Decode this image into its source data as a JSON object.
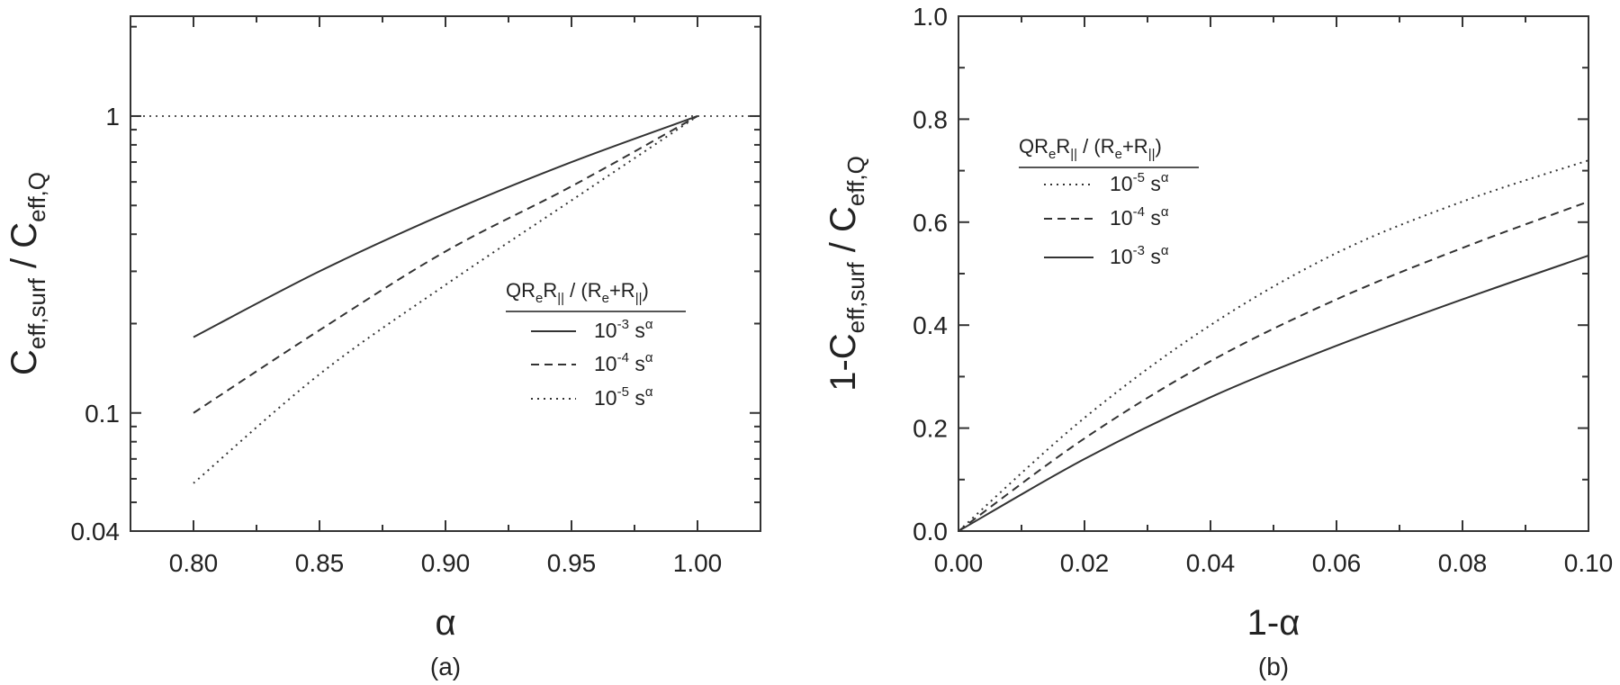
{
  "chart_data": [
    {
      "panel_label": "(a)",
      "type": "line",
      "xlabel": "α",
      "ylabel": {
        "base": "C",
        "sub1": "eff,surf",
        "mid": " / C",
        "sub2": "eff,Q"
      },
      "xlim": [
        0.775,
        1.025
      ],
      "ylim": [
        0.04,
        2.17
      ],
      "yscale": "log",
      "xticks": [
        "0.80",
        "0.85",
        "0.90",
        "0.95",
        "1.00"
      ],
      "xtick_values": [
        0.8,
        0.85,
        0.9,
        0.95,
        1.0
      ],
      "yticks": [
        "0.04",
        "0.1",
        "1"
      ],
      "ytick_values": [
        0.04,
        0.1,
        1
      ],
      "reference_line": {
        "y": 1,
        "style": "dotted"
      },
      "legend": {
        "title": {
          "a": "QR",
          "b": "e",
          "c": "R",
          "d": "||",
          "e": " / (R",
          "f": "e",
          "g": "+R",
          "h": "||",
          "i": ")"
        },
        "position": "center-right"
      },
      "series": [
        {
          "name": {
            "base": "10",
            "exp": "-3",
            "unit": " s",
            "uexp": "α"
          },
          "style": "solid",
          "x": [
            0.8,
            0.85,
            0.9,
            0.95,
            1.0
          ],
          "y": [
            0.18,
            0.3,
            0.47,
            0.7,
            1.0
          ]
        },
        {
          "name": {
            "base": "10",
            "exp": "-4",
            "unit": " s",
            "uexp": "α"
          },
          "style": "dashed",
          "x": [
            0.8,
            0.85,
            0.9,
            0.95,
            1.0
          ],
          "y": [
            0.1,
            0.19,
            0.35,
            0.58,
            1.0
          ]
        },
        {
          "name": {
            "base": "10",
            "exp": "-5",
            "unit": " s",
            "uexp": "α"
          },
          "style": "dotted",
          "x": [
            0.8,
            0.85,
            0.9,
            0.95,
            1.0
          ],
          "y": [
            0.058,
            0.135,
            0.27,
            0.52,
            1.0
          ]
        }
      ]
    },
    {
      "panel_label": "(b)",
      "type": "line",
      "xlabel": "1-α",
      "ylabel": {
        "base": "1-C",
        "sub1": "eff,surf",
        "mid": " / C",
        "sub2": "eff,Q"
      },
      "xlim": [
        0,
        0.1
      ],
      "ylim": [
        0,
        1.0
      ],
      "yscale": "linear",
      "xticks": [
        "0.00",
        "0.02",
        "0.04",
        "0.06",
        "0.08",
        "0.10"
      ],
      "xtick_values": [
        0,
        0.02,
        0.04,
        0.06,
        0.08,
        0.1
      ],
      "yticks": [
        "0.0",
        "0.2",
        "0.4",
        "0.6",
        "0.8",
        "1.0"
      ],
      "ytick_values": [
        0,
        0.2,
        0.4,
        0.6,
        0.8,
        1.0
      ],
      "legend": {
        "title": {
          "a": "QR",
          "b": "e",
          "c": "R",
          "d": "||",
          "e": " / (R",
          "f": "e",
          "g": "+R",
          "h": "||",
          "i": ")"
        },
        "position": "upper-left"
      },
      "series": [
        {
          "name": {
            "base": "10",
            "exp": "-5",
            "unit": " s",
            "uexp": "α"
          },
          "style": "dotted",
          "x": [
            0,
            0.02,
            0.04,
            0.06,
            0.08,
            0.1
          ],
          "y": [
            0,
            0.22,
            0.4,
            0.54,
            0.64,
            0.72
          ]
        },
        {
          "name": {
            "base": "10",
            "exp": "-4",
            "unit": " s",
            "uexp": "α"
          },
          "style": "dashed",
          "x": [
            0,
            0.02,
            0.04,
            0.06,
            0.08,
            0.1
          ],
          "y": [
            0,
            0.18,
            0.33,
            0.45,
            0.55,
            0.64
          ]
        },
        {
          "name": {
            "base": "10",
            "exp": "-3",
            "unit": " s",
            "uexp": "α"
          },
          "style": "solid",
          "x": [
            0,
            0.02,
            0.04,
            0.06,
            0.08,
            0.1
          ],
          "y": [
            0,
            0.14,
            0.26,
            0.36,
            0.45,
            0.535
          ]
        }
      ]
    }
  ]
}
